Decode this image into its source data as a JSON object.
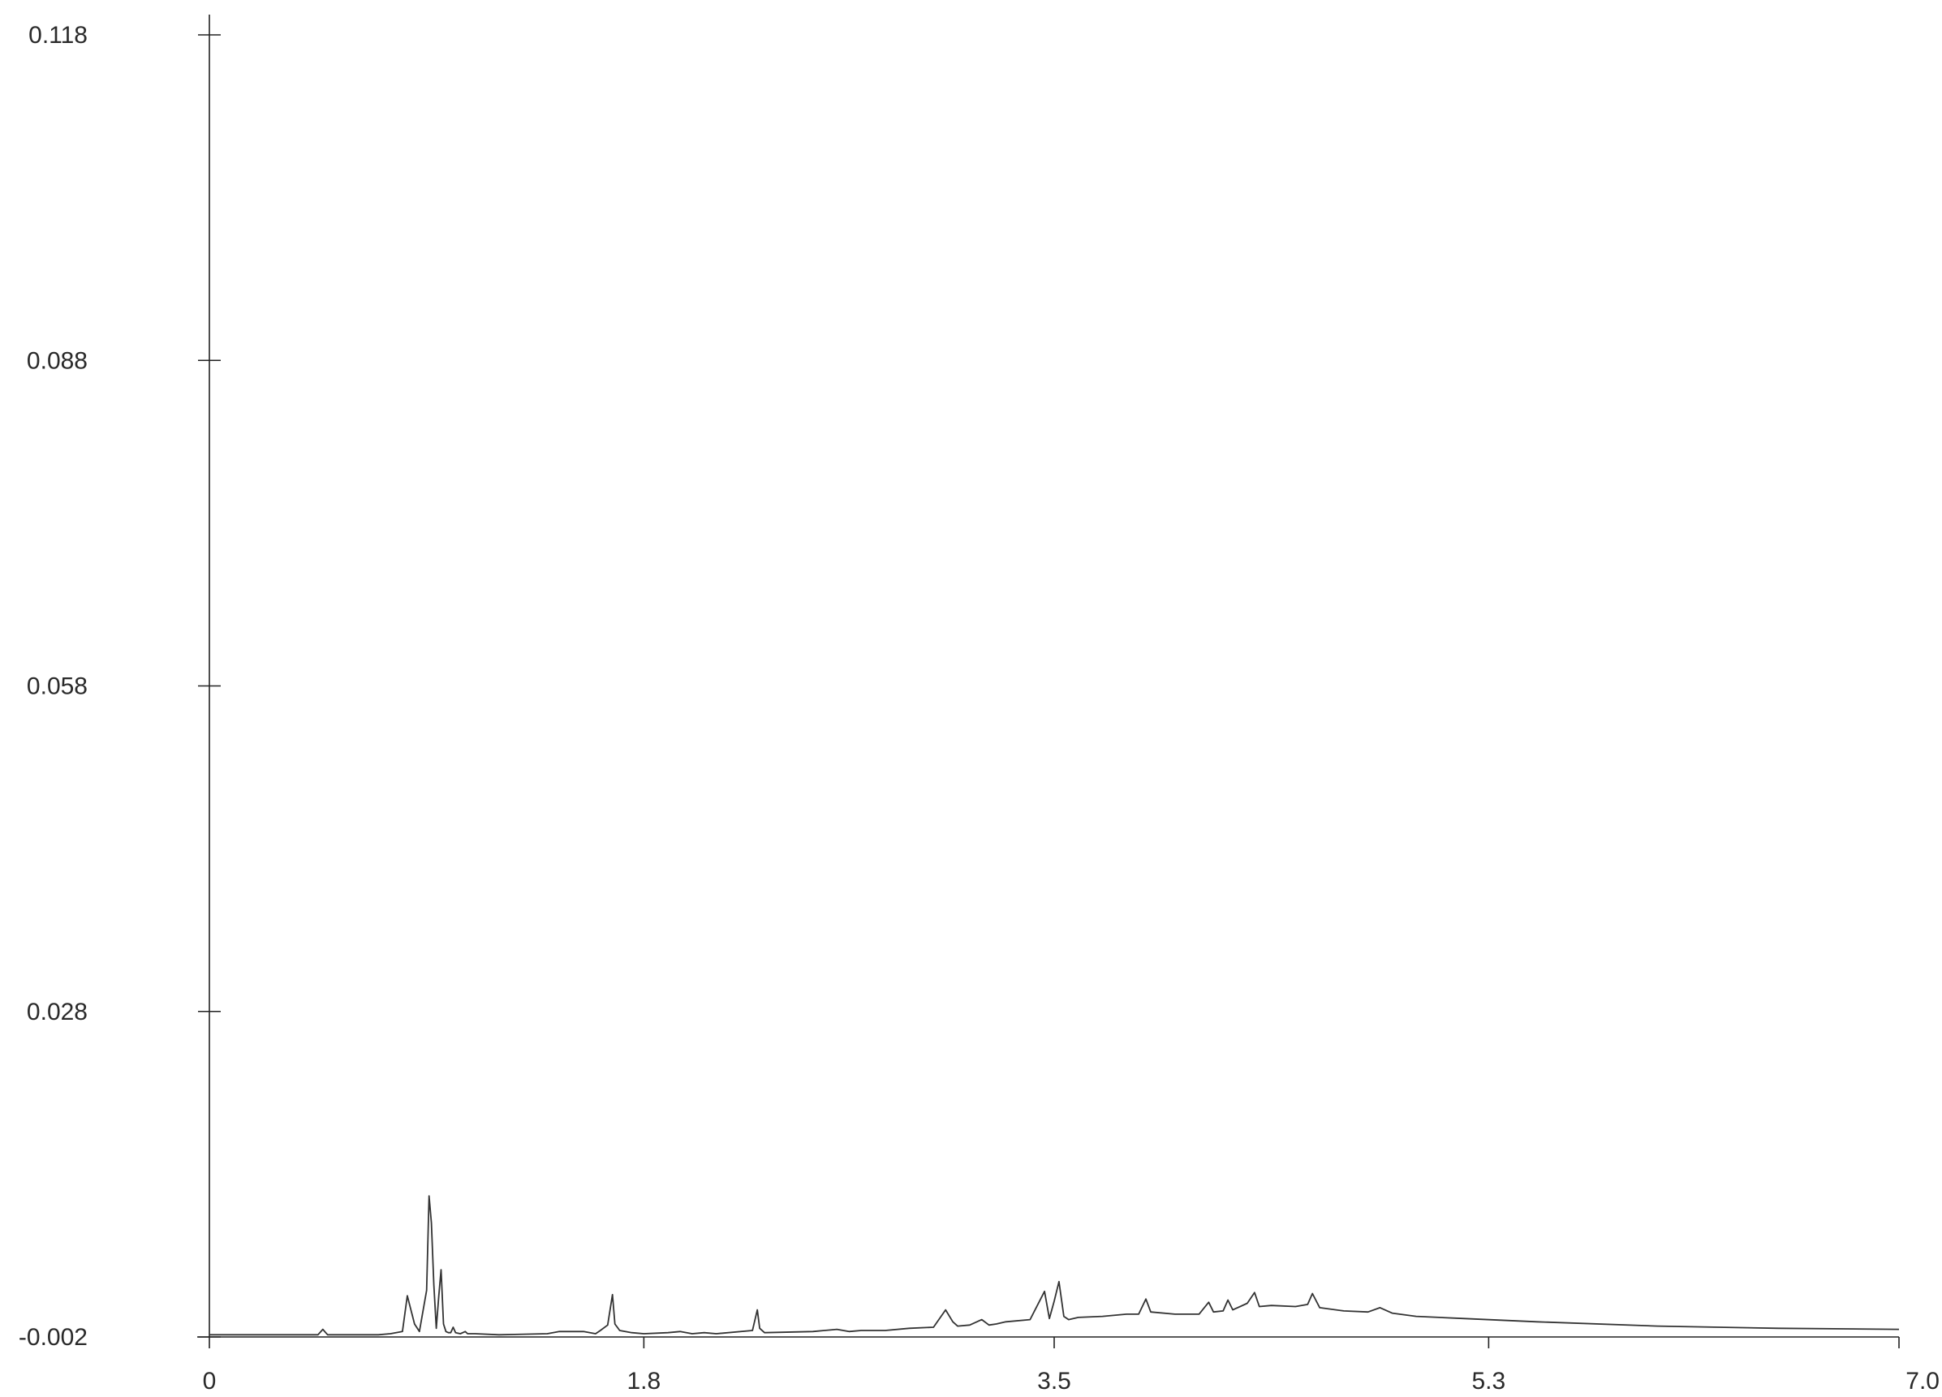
{
  "chart_data": {
    "type": "line",
    "title": "",
    "xlabel": "",
    "ylabel": "",
    "xlim": [
      0,
      7.0
    ],
    "ylim": [
      -0.002,
      0.118
    ],
    "x_ticks": [
      0,
      1.8,
      3.5,
      5.3,
      7.0
    ],
    "x_tick_labels": [
      "0",
      "1.8",
      "3.5",
      "5.3",
      "7.0"
    ],
    "y_ticks": [
      -0.002,
      0.028,
      0.058,
      0.088,
      0.118
    ],
    "y_tick_labels": [
      "-0.002",
      "0.028",
      "0.058",
      "0.088",
      "0.118"
    ],
    "grid": false,
    "legend": "none",
    "colors": {
      "line": "#333333",
      "axis": "#222222",
      "text": "#2a2a2a"
    },
    "series": [
      {
        "x": [
          0,
          0.3,
          0.45,
          0.47,
          0.49,
          0.6,
          0.7,
          0.75,
          0.8,
          0.82,
          0.85,
          0.87,
          0.9,
          0.91,
          0.92,
          0.93,
          0.94,
          0.95,
          0.96,
          0.97,
          0.98,
          0.99,
          1.0,
          1.01,
          1.02,
          1.04,
          1.06,
          1.07,
          1.1,
          1.2,
          1.4,
          1.45,
          1.55,
          1.6,
          1.62,
          1.65,
          1.67,
          1.68,
          1.7,
          1.75,
          1.8,
          1.9,
          1.95,
          2.0,
          2.05,
          2.1,
          2.25,
          2.27,
          2.28,
          2.3,
          2.5,
          2.6,
          2.65,
          2.7,
          2.8,
          2.9,
          3.0,
          3.05,
          3.08,
          3.1,
          3.15,
          3.2,
          3.23,
          3.26,
          3.3,
          3.4,
          3.46,
          3.48,
          3.5,
          3.52,
          3.54,
          3.56,
          3.6,
          3.7,
          3.8,
          3.85,
          3.88,
          3.9,
          4.0,
          4.1,
          4.14,
          4.16,
          4.2,
          4.22,
          4.24,
          4.3,
          4.33,
          4.35,
          4.4,
          4.5,
          4.55,
          4.57,
          4.6,
          4.7,
          4.8,
          4.85,
          4.9,
          5.0,
          5.2,
          5.5,
          6.0,
          6.5,
          7.0
        ],
        "y": [
          -0.0018,
          -0.0018,
          -0.0018,
          -0.0013,
          -0.0018,
          -0.0018,
          -0.0018,
          -0.0017,
          -0.0015,
          0.0018,
          -0.0008,
          -0.0015,
          0.0023,
          0.011,
          0.0085,
          0.0028,
          -0.0012,
          0.0017,
          0.0042,
          -0.0008,
          -0.0015,
          -0.0016,
          -0.0016,
          -0.0011,
          -0.0016,
          -0.0017,
          -0.0015,
          -0.0017,
          -0.0017,
          -0.0018,
          -0.0017,
          -0.0015,
          -0.0015,
          -0.0017,
          -0.0014,
          -0.0009,
          0.0019,
          -0.0008,
          -0.0014,
          -0.0016,
          -0.0017,
          -0.0016,
          -0.0015,
          -0.0017,
          -0.0016,
          -0.0017,
          -0.0014,
          0.0005,
          -0.0012,
          -0.0016,
          -0.0015,
          -0.0013,
          -0.0015,
          -0.0014,
          -0.0014,
          -0.0012,
          -0.0011,
          0.0005,
          -0.0006,
          -0.001,
          -0.0009,
          -0.0004,
          -0.0009,
          -0.0008,
          -0.0006,
          -0.0004,
          0.0022,
          -0.0003,
          0.0013,
          0.0031,
          -0.0001,
          -0.0004,
          -0.0002,
          -0.0001,
          0.0001,
          0.0001,
          0.0015,
          0.0003,
          0.0001,
          0.0001,
          0.0012,
          0.0003,
          0.0004,
          0.0014,
          0.0005,
          0.0011,
          0.0021,
          0.0008,
          0.0009,
          0.0008,
          0.001,
          0.002,
          0.0007,
          0.0004,
          0.0003,
          0.0007,
          0.0002,
          -0.0001,
          -0.0003,
          -0.0006,
          -0.001,
          -0.0012,
          -0.0013
        ]
      }
    ]
  }
}
